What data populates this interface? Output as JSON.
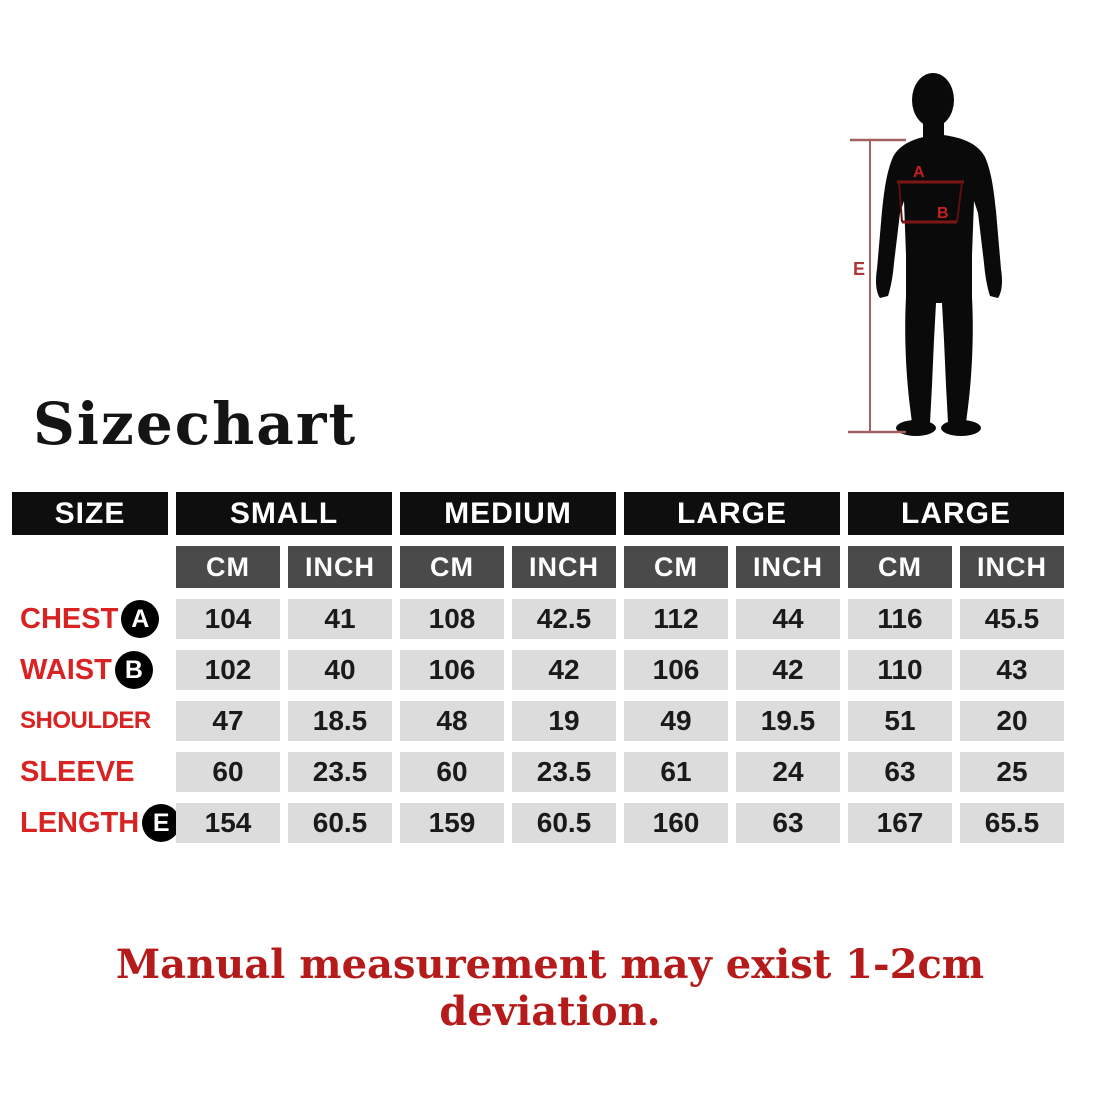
{
  "title": "Sizechart",
  "note": "Manual measurement may exist 1-2cm deviation.",
  "colors": {
    "header_bg": "#0e0e0e",
    "unit_bg": "#4a4a4a",
    "cell_bg": "#dcdcdc",
    "label_red": "#d92323",
    "note_red": "#b51b1b",
    "silhouette_black": "#0a0a0a",
    "measure_line": "#a26262",
    "measure_dark_line": "#7d1616",
    "measure_letter": "#c42020"
  },
  "figure": {
    "chest_label": "A",
    "waist_label": "B",
    "height_label": "E"
  },
  "table": {
    "size_header": "SIZE",
    "groups": [
      "SMALL",
      "MEDIUM",
      "LARGE",
      "LARGE"
    ],
    "unit_headers": [
      "CM",
      "INCH"
    ],
    "rows": [
      {
        "label": "CHEST",
        "badge": "A",
        "values": [
          "104",
          "41",
          "108",
          "42.5",
          "112",
          "44",
          "116",
          "45.5"
        ]
      },
      {
        "label": "WAIST",
        "badge": "B",
        "values": [
          "102",
          "40",
          "106",
          "42",
          "106",
          "42",
          "110",
          "43"
        ]
      },
      {
        "label": "SHOULDER",
        "badge": "",
        "values": [
          "47",
          "18.5",
          "48",
          "19",
          "49",
          "19.5",
          "51",
          "20"
        ]
      },
      {
        "label": "SLEEVE",
        "badge": "",
        "values": [
          "60",
          "23.5",
          "60",
          "23.5",
          "61",
          "24",
          "63",
          "25"
        ]
      },
      {
        "label": "LENGTH",
        "badge": "E",
        "values": [
          "154",
          "60.5",
          "159",
          "60.5",
          "160",
          "63",
          "167",
          "65.5"
        ]
      }
    ]
  },
  "chart_data": {
    "type": "table",
    "title": "Sizechart",
    "columns": [
      "SIZE",
      "SMALL CM",
      "SMALL INCH",
      "MEDIUM CM",
      "MEDIUM INCH",
      "LARGE CM",
      "LARGE INCH",
      "LARGE CM",
      "LARGE INCH"
    ],
    "rows": [
      [
        "CHEST (A)",
        104,
        41,
        108,
        42.5,
        112,
        44,
        116,
        45.5
      ],
      [
        "WAIST (B)",
        102,
        40,
        106,
        42,
        106,
        42,
        110,
        43
      ],
      [
        "SHOULDER",
        47,
        18.5,
        48,
        19,
        49,
        19.5,
        51,
        20
      ],
      [
        "SLEEVE",
        60,
        23.5,
        60,
        23.5,
        61,
        24,
        63,
        25
      ],
      [
        "LENGTH (E)",
        154,
        60.5,
        159,
        60.5,
        160,
        63,
        167,
        65.5
      ]
    ],
    "annotations": [
      "A = chest line",
      "B = waist line",
      "E = height line"
    ],
    "note": "Manual measurement may exist 1-2cm deviation."
  }
}
